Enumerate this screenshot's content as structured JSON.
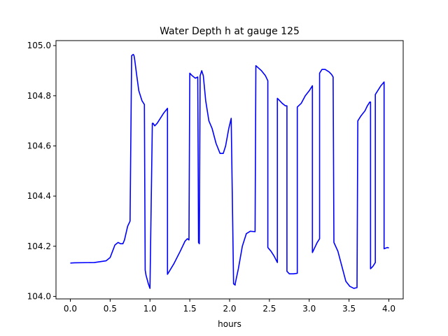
{
  "chart_data": {
    "type": "line",
    "title": "Water Depth h at gauge 125",
    "xlabel": "hours",
    "ylabel": "",
    "xlim": [
      -0.18,
      4.18
    ],
    "ylim": [
      103.99,
      105.02
    ],
    "xticks": [
      0.0,
      0.5,
      1.0,
      1.5,
      2.0,
      2.5,
      3.0,
      3.5,
      4.0
    ],
    "xtick_labels": [
      "0.0",
      "0.5",
      "1.0",
      "1.5",
      "2.0",
      "2.5",
      "3.0",
      "3.5",
      "4.0"
    ],
    "yticks": [
      104.0,
      104.2,
      104.4,
      104.6,
      104.8,
      105.0
    ],
    "ytick_labels": [
      "104.0",
      "104.2",
      "104.4",
      "104.6",
      "104.8",
      "105.0"
    ],
    "grid": false,
    "series": [
      {
        "color": "#0000ff",
        "x": [
          0.0,
          0.05,
          0.3,
          0.45,
          0.5,
          0.53,
          0.56,
          0.6,
          0.63,
          0.66,
          0.68,
          0.72,
          0.75,
          0.77,
          0.79,
          0.8,
          0.81,
          0.83,
          0.86,
          0.9,
          0.93,
          0.94,
          0.95,
          0.98,
          1.0,
          1.03,
          1.04,
          1.06,
          1.09,
          1.13,
          1.17,
          1.22,
          1.22,
          1.3,
          1.38,
          1.44,
          1.47,
          1.49,
          1.5,
          1.53,
          1.57,
          1.6,
          1.61,
          1.62,
          1.63,
          1.65,
          1.67,
          1.7,
          1.74,
          1.78,
          1.83,
          1.88,
          1.92,
          1.95,
          1.99,
          2.02,
          2.05,
          2.07,
          2.07,
          2.11,
          2.16,
          2.21,
          2.26,
          2.32,
          2.33,
          2.4,
          2.45,
          2.48,
          2.48,
          2.52,
          2.56,
          2.6,
          2.6,
          2.63,
          2.66,
          2.7,
          2.72,
          2.72,
          2.75,
          2.8,
          2.85,
          2.85,
          2.9,
          2.95,
          3.0,
          3.04,
          3.04,
          3.07,
          3.1,
          3.13,
          3.13,
          3.16,
          3.2,
          3.25,
          3.28,
          3.3,
          3.31,
          3.31,
          3.36,
          3.41,
          3.46,
          3.51,
          3.56,
          3.6,
          3.61,
          3.61,
          3.65,
          3.7,
          3.73,
          3.76,
          3.77,
          3.77,
          3.8,
          3.83,
          3.83,
          3.87,
          3.9,
          3.94,
          3.94,
          3.98,
          4.0
        ],
        "y": [
          104.133,
          104.134,
          104.135,
          104.142,
          104.155,
          104.18,
          104.205,
          104.215,
          104.21,
          104.21,
          104.225,
          104.28,
          104.3,
          104.96,
          104.965,
          104.96,
          104.94,
          104.89,
          104.82,
          104.78,
          104.765,
          104.105,
          104.085,
          104.05,
          104.032,
          104.69,
          104.69,
          104.68,
          104.69,
          104.71,
          104.73,
          104.75,
          104.088,
          104.13,
          104.18,
          104.22,
          104.23,
          104.225,
          104.89,
          104.88,
          104.87,
          104.875,
          104.215,
          104.21,
          104.88,
          104.9,
          104.88,
          104.78,
          104.7,
          104.67,
          104.61,
          104.57,
          104.57,
          104.6,
          104.67,
          104.71,
          104.05,
          104.045,
          104.05,
          104.11,
          104.2,
          104.25,
          104.26,
          104.258,
          104.92,
          104.9,
          104.88,
          104.86,
          104.195,
          104.18,
          104.16,
          104.135,
          104.79,
          104.78,
          104.77,
          104.76,
          104.76,
          104.1,
          104.09,
          104.09,
          104.092,
          104.755,
          104.77,
          104.8,
          104.82,
          104.84,
          104.175,
          104.195,
          104.215,
          104.23,
          104.89,
          104.905,
          104.905,
          104.895,
          104.885,
          104.875,
          104.215,
          104.215,
          104.18,
          104.12,
          104.06,
          104.04,
          104.032,
          104.035,
          104.695,
          104.7,
          104.72,
          104.74,
          104.76,
          104.775,
          104.775,
          104.11,
          104.12,
          104.135,
          104.805,
          104.825,
          104.84,
          104.855,
          104.19,
          104.195,
          104.193
        ]
      }
    ]
  }
}
